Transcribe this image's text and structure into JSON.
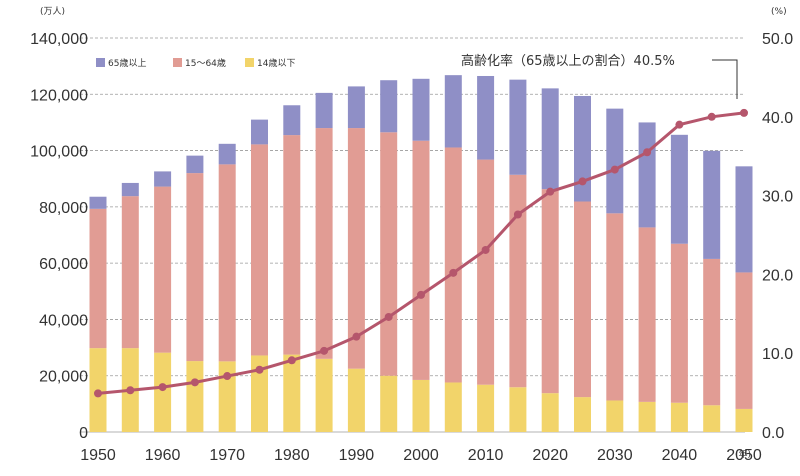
{
  "chart_data": {
    "type": "bar",
    "stacked": true,
    "left_unit_label": "(万人)",
    "right_unit_label": "(%)",
    "x_unit_label": "(年)",
    "ylim": [
      0,
      140000
    ],
    "y2lim": [
      0,
      50
    ],
    "y_ticks": [
      "0",
      "20,000",
      "40,000",
      "60,000",
      "80,000",
      "100,000",
      "120,000",
      "140,000"
    ],
    "y2_ticks": [
      "0.0",
      "10.0",
      "20.0",
      "30.0",
      "40.0",
      "50.0"
    ],
    "x_ticks": [
      "1950",
      "1960",
      "1970",
      "1980",
      "1990",
      "2000",
      "2010",
      "2020",
      "2030",
      "2040",
      "2050"
    ],
    "categories": [
      "1950",
      "1955",
      "1960",
      "1965",
      "1970",
      "1975",
      "1980",
      "1985",
      "1990",
      "1995",
      "2000",
      "2005",
      "2010",
      "2015",
      "2020",
      "2025",
      "2030",
      "2035",
      "2040",
      "2045",
      "2050"
    ],
    "series": [
      {
        "name": "14歳以下",
        "color": "#f2d46a",
        "values": [
          29800,
          29800,
          28200,
          25200,
          25100,
          27200,
          27500,
          26000,
          22500,
          20000,
          18500,
          17600,
          16800,
          15900,
          13800,
          12400,
          11200,
          10700,
          10400,
          9500,
          8200
        ]
      },
      {
        "name": "15～64歳",
        "color": "#e19c94",
        "values": [
          49500,
          54000,
          59000,
          66800,
          70000,
          75000,
          78000,
          82000,
          85500,
          86500,
          85000,
          83500,
          80000,
          75500,
          72500,
          69500,
          66500,
          62000,
          56500,
          52000,
          48500
        ]
      },
      {
        "name": "65歳以上",
        "color": "#8f8fc6",
        "values": [
          4300,
          4700,
          5400,
          6200,
          7300,
          8800,
          10600,
          12500,
          14800,
          18500,
          22000,
          25700,
          29700,
          33800,
          35800,
          37500,
          37200,
          37300,
          38700,
          38400,
          37700
        ]
      }
    ],
    "line": {
      "name": "高齢化率",
      "axis": "right",
      "color": "#b5566c",
      "values": [
        4.9,
        5.3,
        5.7,
        6.3,
        7.1,
        7.9,
        9.1,
        10.3,
        12.1,
        14.6,
        17.4,
        20.2,
        23.1,
        27.6,
        30.5,
        31.8,
        33.3,
        35.5,
        39.0,
        40.0,
        40.5
      ]
    },
    "annotation": "高齢化率（65歳以上の割合）40.5%",
    "grid": true,
    "legend_position": "top-left"
  }
}
